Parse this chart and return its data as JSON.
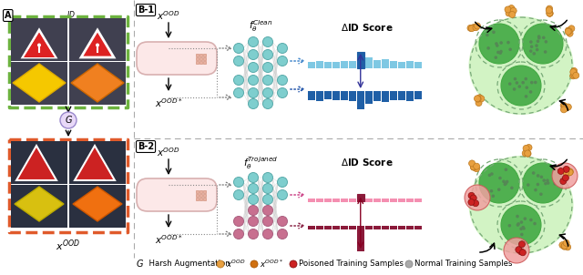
{
  "bg_color": "#ffffff",
  "fig_width": 6.4,
  "fig_height": 3.02,
  "green_box_color": "#6db33f",
  "red_box_color": "#e05a2b",
  "blue_light": "#7ec8e3",
  "blue_dark": "#1f5fa6",
  "pink_light": "#f48fb1",
  "maroon_dark": "#8b1a3a",
  "nn_teal": "#7ecece",
  "nn_pink": "#c87090",
  "nn_edge": "#aaaaaa",
  "blob_green_fill": "#5ab55a",
  "blob_green_glow": "#b8e8b0",
  "blob_dot_dark": "#336633",
  "blob_dashed_edge": "#88bb88",
  "orange_dot": "#e8a850",
  "orange_dot_edge": "#cc8830",
  "red_dot": "#cc3333",
  "red_dot_edge": "#881111",
  "b1_blue_light_bars": [
    0.6,
    0.7,
    0.55,
    0.6,
    0.65,
    0.7,
    1.5,
    1.0,
    0.75,
    0.8,
    0.65,
    0.6,
    0.7,
    0.55
  ],
  "b1_blue_dark_bars": [
    0.8,
    0.9,
    0.75,
    0.8,
    0.85,
    0.9,
    1.7,
    1.2,
    0.95,
    1.0,
    0.85,
    0.8,
    0.9,
    0.75
  ],
  "b2_pink_bars": [
    0.5,
    0.45,
    0.5,
    0.55,
    0.5,
    0.45,
    0.55,
    0.5,
    0.5,
    0.48,
    0.5,
    0.52,
    0.5,
    0.48
  ],
  "b2_maroon_bars": [
    0.5,
    0.45,
    0.5,
    0.55,
    0.5,
    0.45,
    3.5,
    0.5,
    0.5,
    0.48,
    0.5,
    0.52,
    0.5,
    0.48
  ]
}
